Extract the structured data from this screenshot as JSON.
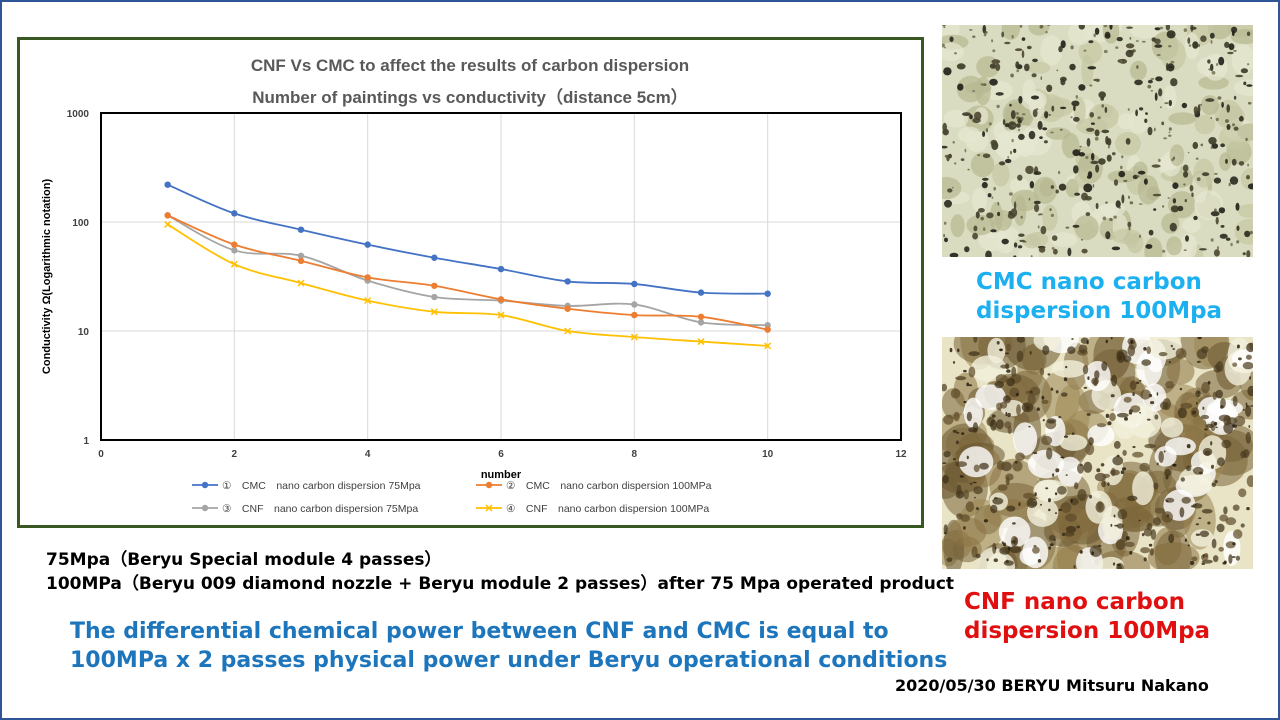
{
  "chart_data": {
    "type": "line",
    "title": "CNF Vs CMC to affect the results of carbon dispersion",
    "subtitle": "Number of paintings vs conductivity（distance 5cm）",
    "xlabel": "number",
    "ylabel": "Conductivity  Ω(Logarithmic notation)",
    "x_ticks": [
      "0",
      "2",
      "4",
      "6",
      "8",
      "10",
      "12"
    ],
    "y_ticks": [
      "1",
      "10",
      "100",
      "1000"
    ],
    "xlim": [
      0,
      12
    ],
    "ylim": [
      1,
      1000
    ],
    "yscale": "log",
    "grid": true,
    "legend_position": "bottom",
    "x": [
      1,
      2,
      3,
      4,
      5,
      6,
      7,
      8,
      9,
      10
    ],
    "series": [
      {
        "name": "①　CMC　nano carbon dispersion  75Mpa",
        "color": "#4472c4",
        "marker": "circle",
        "values": [
          220,
          120,
          85,
          62,
          47,
          37,
          28.5,
          27,
          22.5,
          22
        ]
      },
      {
        "name": "②　CMC　nano carbon dispersion  100MPa",
        "color": "#ed7d31",
        "marker": "circle",
        "values": [
          115,
          62,
          44,
          31,
          26,
          19.5,
          16,
          14,
          13.5,
          10.3
        ]
      },
      {
        "name": "③　CNF　nano carbon dispersion  75Mpa",
        "color": "#a5a5a5",
        "marker": "circle",
        "values": [
          115,
          55,
          49,
          29,
          20.5,
          19,
          17,
          17.5,
          12,
          11.3
        ]
      },
      {
        "name": "④　CNF　nano carbon dispersion  100MPa",
        "color": "#ffc000",
        "marker": "x",
        "values": [
          95,
          41,
          27.5,
          19,
          15,
          14,
          10,
          8.8,
          8,
          7.3
        ]
      }
    ]
  },
  "images": {
    "cmc_micrograph": "cmc-micrograph",
    "cnf_micrograph": "cnf-micrograph"
  },
  "captions": {
    "cmc_line1": "CMC nano carbon",
    "cmc_line2": "dispersion 100Mpa",
    "cnf_line1": "CNF nano carbon",
    "cnf_line2": "dispersion 100Mpa"
  },
  "notes": {
    "line1": "75Mpa（Beryu Special module 4 passes）",
    "line2": "100MPa（Beryu 009 diamond nozzle + Beryu module 2 passes）after 75 Mpa operated product"
  },
  "conclusion": {
    "line1": "The differential chemical power between CNF and CMC is equal to",
    "line2": "100MPa x 2 passes physical power under Beryu operational conditions"
  },
  "credit": "2020/05/30 BERYU Mitsuru Nakano"
}
